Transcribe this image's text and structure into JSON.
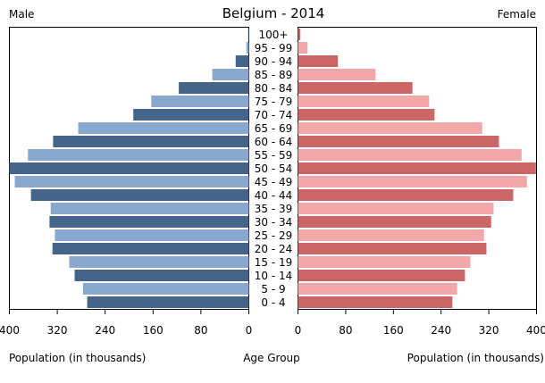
{
  "chart_data": {
    "type": "bar",
    "subtype": "population-pyramid",
    "title": "Belgium - 2014",
    "left_label": "Male",
    "right_label": "Female",
    "xlabel_left": "Population (in thousands)",
    "xlabel_center": "Age Group",
    "xlabel_right": "Population (in thousands)",
    "xlim": [
      0,
      400
    ],
    "xticks": [
      "0",
      "80",
      "160",
      "240",
      "320",
      "400"
    ],
    "grid": false,
    "categories": [
      "0 - 4",
      "5 - 9",
      "10 - 14",
      "15 - 19",
      "20 - 24",
      "25 - 29",
      "30 - 34",
      "35 - 39",
      "40 - 44",
      "45 - 49",
      "50 - 54",
      "55 - 59",
      "60 - 64",
      "65 - 69",
      "70 - 74",
      "75 - 79",
      "80 - 84",
      "85 - 89",
      "90 - 94",
      "95 - 99",
      "100+"
    ],
    "series": [
      {
        "name": "Male",
        "values": [
          270,
          277,
          291,
          300,
          328,
          324,
          333,
          331,
          364,
          391,
          400,
          369,
          327,
          285,
          193,
          163,
          117,
          61,
          22,
          4,
          1
        ]
      },
      {
        "name": "Female",
        "values": [
          259,
          267,
          280,
          289,
          316,
          312,
          324,
          328,
          361,
          384,
          399,
          375,
          337,
          309,
          229,
          220,
          192,
          130,
          67,
          16,
          4
        ]
      }
    ],
    "colors": {
      "male_dark": "#44648a",
      "male_light": "#88a8d0",
      "female_dark": "#cc6666",
      "female_light": "#f2a8a8"
    }
  }
}
